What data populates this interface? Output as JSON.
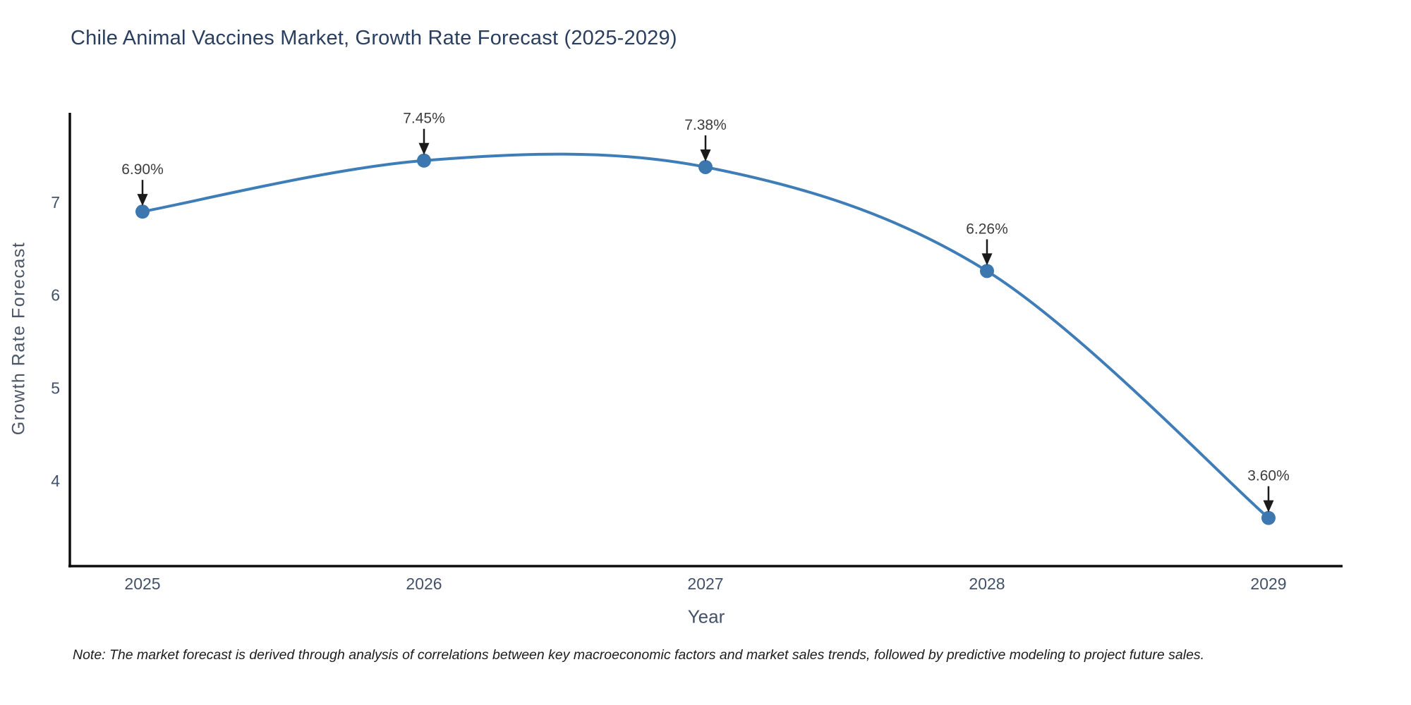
{
  "chart": {
    "title": "Chile Animal Vaccines Market, Growth Rate Forecast (2025-2029)",
    "xlabel": "Year",
    "ylabel": "Growth Rate Forecast"
  },
  "note": "Note: The market forecast is derived through analysis of correlations between key macroeconomic factors and market sales trends, followed by predictive modeling to project future sales.",
  "chart_data": {
    "type": "line",
    "line_shape": "spline",
    "x": [
      2025,
      2026,
      2027,
      2028,
      2029
    ],
    "values": [
      6.9,
      7.45,
      7.38,
      6.26,
      3.6
    ],
    "point_labels": [
      "6.90%",
      "7.45%",
      "7.38%",
      "6.26%",
      "3.60%"
    ],
    "title": "Chile Animal Vaccines Market, Growth Rate Forecast (2025-2029)",
    "xlabel": "Year",
    "ylabel": "Growth Rate Forecast",
    "yticks": [
      7,
      6,
      5,
      4
    ],
    "xticks": [
      "2025",
      "2026",
      "2027",
      "2028",
      "2029"
    ],
    "ylim": [
      3.08,
      7.96
    ],
    "grid": false,
    "legend": "none",
    "colors": {
      "line": "#3f7db8",
      "marker": "#3c77b0",
      "axis": "#0d0d0d",
      "annotation_text": "#3d3d3d",
      "annotation_arrow": "#1a1a1a",
      "tick_label": "#42526a",
      "title": "#2a3f5f"
    }
  }
}
